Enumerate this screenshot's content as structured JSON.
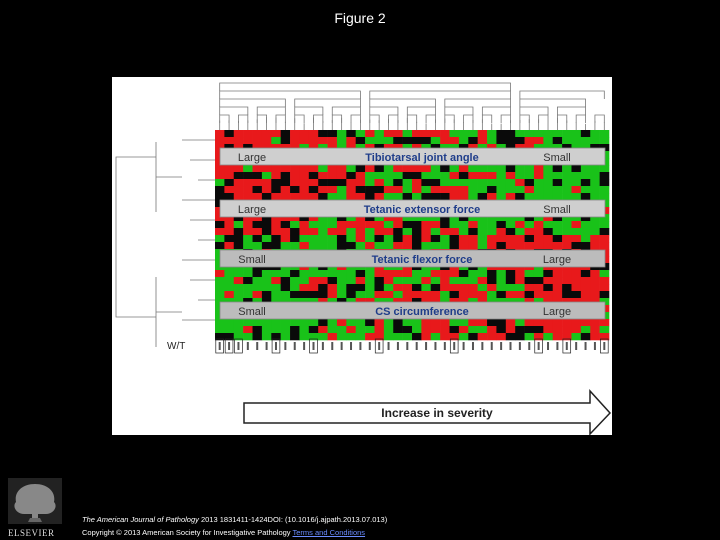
{
  "slide_title": "Figure 2",
  "figure": {
    "wt_label": "W/T",
    "arrow_label": "Increase in severity",
    "bands": [
      {
        "left": "Large",
        "center": "Tibiotarsal joint angle",
        "right": "Small"
      },
      {
        "left": "Large",
        "center": "Tetanic extensor force",
        "right": "Small"
      },
      {
        "left": "Small",
        "center": "Tetanic flexor force",
        "right": "Large"
      },
      {
        "left": "Small",
        "center": "CS circumference",
        "right": "Large"
      }
    ],
    "colors": {
      "red": "#e8191b",
      "green": "#19c219",
      "black": "#0a0a0a",
      "band_text": "#1f3d8a"
    }
  },
  "citation": {
    "journal": "The American Journal of Pathology",
    "details": " 2013 1831411-1424DOI: (10.1016/j.ajpath.2013.07.013)"
  },
  "copyright": {
    "text": "Copyright © 2013 American Society for Investigative Pathology ",
    "link": "Terms and Conditions"
  },
  "publisher": {
    "logo_word": "ELSEVIER"
  }
}
